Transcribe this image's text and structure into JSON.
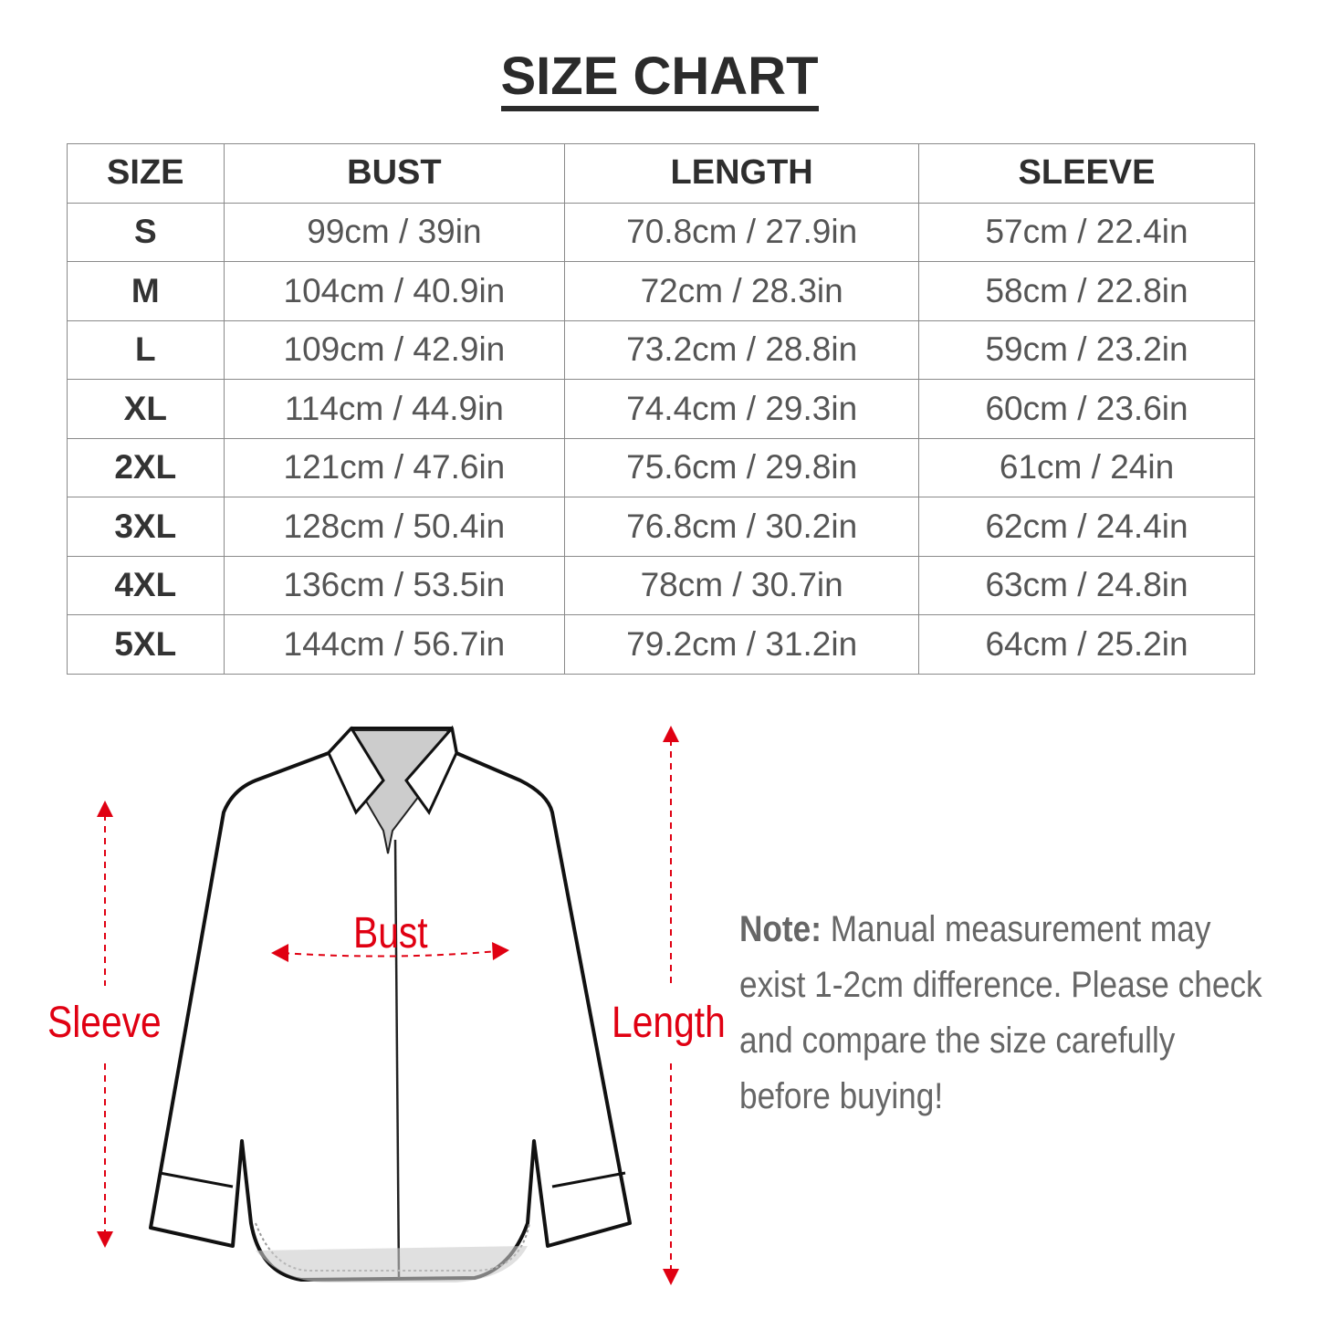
{
  "title": "SIZE CHART",
  "table": {
    "headers": [
      "SIZE",
      "BUST",
      "LENGTH",
      "SLEEVE"
    ],
    "rows": [
      [
        "S",
        "99cm / 39in",
        "70.8cm / 27.9in",
        "57cm / 22.4in"
      ],
      [
        "M",
        "104cm / 40.9in",
        "72cm / 28.3in",
        "58cm / 22.8in"
      ],
      [
        "L",
        "109cm / 42.9in",
        "73.2cm / 28.8in",
        "59cm / 23.2in"
      ],
      [
        "XL",
        "114cm / 44.9in",
        "74.4cm / 29.3in",
        "60cm / 23.6in"
      ],
      [
        "2XL",
        "121cm / 47.6in",
        "75.6cm / 29.8in",
        "61cm / 24in"
      ],
      [
        "3XL",
        "128cm / 50.4in",
        "76.8cm / 30.2in",
        "62cm / 24.4in"
      ],
      [
        "4XL",
        "136cm / 53.5in",
        "78cm / 30.7in",
        "63cm / 24.8in"
      ],
      [
        "5XL",
        "144cm / 56.7in",
        "79.2cm / 31.2in",
        "64cm / 25.2in"
      ]
    ]
  },
  "diagram": {
    "labels": {
      "sleeve": "Sleeve",
      "bust": "Bust",
      "length": "Length"
    },
    "accent_color": "#e00012"
  },
  "note": {
    "label": "Note:",
    "text": " Manual measurement may exist 1-2cm difference. Please check and compare the size carefully before buying!"
  }
}
